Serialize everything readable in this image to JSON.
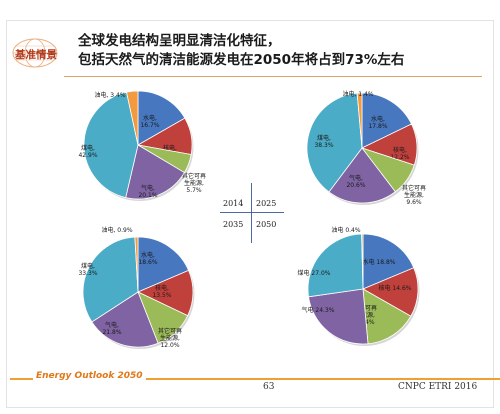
{
  "badge": {
    "text": "基准情景"
  },
  "title": {
    "line1": "全球发电结构呈明显清洁化特征，",
    "line2": "包括天然气的清洁能源发电在2050年将占到73%左右"
  },
  "footer": {
    "brand": "Energy Outlook 2050",
    "page": "63",
    "org": "CNPC ETRI 2016"
  },
  "quadrant": {
    "tl": "2014",
    "tr": "2025",
    "bl": "2035",
    "br": "2050"
  },
  "colors": {
    "hydro": "#4677bf",
    "nuclear": "#c0403c",
    "renewable": "#9bbb59",
    "gas": "#7f63a2",
    "coal": "#4aacc6",
    "oil": "#f39a3e",
    "accent": "#f0a030",
    "badge": "#b23a1c"
  },
  "chart_data": [
    {
      "type": "pie",
      "year": "2014",
      "slices": [
        {
          "key": "hydro",
          "label": "水电,",
          "value": 16.7,
          "value_text": "16.7%"
        },
        {
          "key": "nuclear",
          "label": "核电,",
          "value": 11.1,
          "value_text": "11.1%"
        },
        {
          "key": "renewable",
          "label": "其它可再生能源,",
          "value": 5.7,
          "value_text": "5.7%"
        },
        {
          "key": "gas",
          "label": "气电,",
          "value": 20.1,
          "value_text": "20.1%"
        },
        {
          "key": "coal",
          "label": "煤电,",
          "value": 42.9,
          "value_text": "42.9%"
        },
        {
          "key": "oil",
          "label": "油电,",
          "value": 3.4,
          "value_text": "3.4%"
        }
      ]
    },
    {
      "type": "pie",
      "year": "2025",
      "slices": [
        {
          "key": "hydro",
          "label": "水电,",
          "value": 17.8,
          "value_text": "17.8%"
        },
        {
          "key": "nuclear",
          "label": "核电,",
          "value": 12.2,
          "value_text": "12.2%"
        },
        {
          "key": "renewable",
          "label": "其它可再生能源,",
          "value": 9.6,
          "value_text": "9.6%"
        },
        {
          "key": "gas",
          "label": "气电,",
          "value": 20.6,
          "value_text": "20.6%"
        },
        {
          "key": "coal",
          "label": "煤电,",
          "value": 38.3,
          "value_text": "38.3%"
        },
        {
          "key": "oil",
          "label": "油电,",
          "value": 1.4,
          "value_text": "1.4%"
        }
      ]
    },
    {
      "type": "pie",
      "year": "2035",
      "slices": [
        {
          "key": "hydro",
          "label": "水电,",
          "value": 18.6,
          "value_text": "18.6%"
        },
        {
          "key": "nuclear",
          "label": "核电,",
          "value": 13.5,
          "value_text": "13.5%"
        },
        {
          "key": "renewable",
          "label": "其它可再生能源,",
          "value": 12.0,
          "value_text": "12.0%"
        },
        {
          "key": "gas",
          "label": "气电,",
          "value": 21.8,
          "value_text": "21.8%"
        },
        {
          "key": "coal",
          "label": "煤电,",
          "value": 33.3,
          "value_text": "33.3%"
        },
        {
          "key": "oil",
          "label": "油电,",
          "value": 0.9,
          "value_text": "0.9%"
        }
      ]
    },
    {
      "type": "pie",
      "year": "2050",
      "slices": [
        {
          "key": "hydro",
          "label": "水电",
          "value": 18.8,
          "value_text": "18.8%"
        },
        {
          "key": "nuclear",
          "label": "核电",
          "value": 14.6,
          "value_text": "14.6%"
        },
        {
          "key": "renewable",
          "label": "其它可再生能源,",
          "value": 15.4,
          "value_text": "15.4%"
        },
        {
          "key": "gas",
          "label": "气电",
          "value": 24.3,
          "value_text": "24.3%"
        },
        {
          "key": "coal",
          "label": "煤电",
          "value": 27.0,
          "value_text": "27.0%"
        },
        {
          "key": "oil",
          "label": "油电",
          "value": 0.4,
          "value_text": "0.4%"
        }
      ]
    }
  ]
}
